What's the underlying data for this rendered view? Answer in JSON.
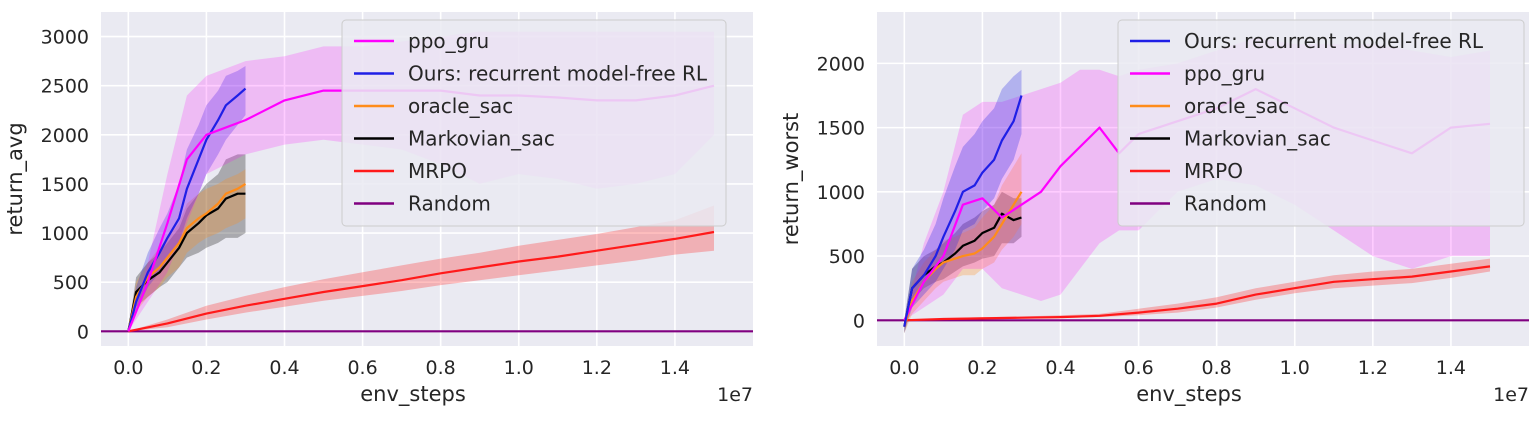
{
  "chart_data": [
    {
      "type": "line",
      "xlabel": "env_steps",
      "ylabel": "return_avg",
      "x_offset_label": "1e7",
      "xlim": [
        -0.07,
        1.6
      ],
      "ylim": [
        -150,
        3250
      ],
      "xticks": [
        0.0,
        0.2,
        0.4,
        0.6,
        0.8,
        1.0,
        1.2,
        1.4
      ],
      "xtick_labels": [
        "0.0",
        "0.2",
        "0.4",
        "0.6",
        "0.8",
        "1.0",
        "1.2",
        "1.4"
      ],
      "yticks": [
        0,
        500,
        1000,
        1500,
        2000,
        2500,
        3000
      ],
      "ytick_labels": [
        "0",
        "500",
        "1000",
        "1500",
        "2000",
        "2500",
        "3000"
      ],
      "grid": true,
      "legend_position": "top-right",
      "series": [
        {
          "name": "ppo_gru",
          "color": "#ff00ff",
          "x": [
            0.0,
            0.05,
            0.1,
            0.15,
            0.2,
            0.3,
            0.4,
            0.5,
            0.6,
            0.7,
            0.8,
            0.9,
            1.0,
            1.1,
            1.2,
            1.3,
            1.4,
            1.5
          ],
          "y": [
            0,
            500,
            1100,
            1750,
            2000,
            2150,
            2350,
            2450,
            2450,
            2450,
            2450,
            2400,
            2400,
            2380,
            2350,
            2350,
            2400,
            2500
          ],
          "lower": [
            0,
            300,
            600,
            1100,
            1600,
            1800,
            1900,
            1950,
            1900,
            1850,
            1700,
            1500,
            1600,
            1550,
            1450,
            1500,
            1600,
            2000
          ],
          "upper": [
            0,
            700,
            1600,
            2400,
            2600,
            2750,
            2800,
            2900,
            2900,
            2950,
            3000,
            3050,
            3050,
            3050,
            3050,
            3050,
            3050,
            3050
          ]
        },
        {
          "name": "Ours: recurrent model-free RL",
          "color": "#1f1fe6",
          "x": [
            0.0,
            0.02,
            0.05,
            0.08,
            0.1,
            0.13,
            0.15,
            0.18,
            0.2,
            0.23,
            0.25,
            0.28,
            0.3
          ],
          "y": [
            0,
            300,
            600,
            800,
            950,
            1150,
            1450,
            1750,
            1950,
            2150,
            2300,
            2400,
            2470
          ],
          "lower": [
            0,
            200,
            450,
            600,
            750,
            900,
            1150,
            1400,
            1600,
            1800,
            1950,
            2100,
            2200
          ],
          "upper": [
            0,
            450,
            800,
            1050,
            1200,
            1500,
            1850,
            2100,
            2300,
            2450,
            2600,
            2650,
            2700
          ]
        },
        {
          "name": "oracle_sac",
          "color": "#ff8c1a",
          "x": [
            0.0,
            0.02,
            0.05,
            0.08,
            0.1,
            0.13,
            0.15,
            0.18,
            0.2,
            0.23,
            0.25,
            0.28,
            0.3
          ],
          "y": [
            0,
            350,
            550,
            650,
            750,
            900,
            1050,
            1150,
            1200,
            1300,
            1400,
            1450,
            1500
          ],
          "lower": [
            0,
            200,
            350,
            450,
            550,
            650,
            800,
            900,
            950,
            1000,
            1050,
            1100,
            1150
          ],
          "upper": [
            0,
            500,
            700,
            850,
            950,
            1100,
            1300,
            1400,
            1450,
            1500,
            1550,
            1600,
            1650
          ]
        },
        {
          "name": "Markovian_sac",
          "color": "#000000",
          "x": [
            0.0,
            0.02,
            0.05,
            0.08,
            0.1,
            0.13,
            0.15,
            0.18,
            0.2,
            0.23,
            0.25,
            0.28,
            0.3
          ],
          "y": [
            0,
            400,
            520,
            600,
            700,
            850,
            1000,
            1100,
            1180,
            1250,
            1350,
            1400,
            1400
          ],
          "lower": [
            0,
            250,
            350,
            450,
            500,
            650,
            750,
            800,
            850,
            900,
            950,
            950,
            1000
          ],
          "upper": [
            0,
            550,
            700,
            800,
            900,
            1050,
            1250,
            1400,
            1500,
            1600,
            1750,
            1800,
            1800
          ]
        },
        {
          "name": "MRPO",
          "color": "#ff1a1a",
          "x": [
            0.0,
            0.1,
            0.2,
            0.3,
            0.4,
            0.5,
            0.6,
            0.7,
            0.8,
            0.9,
            1.0,
            1.1,
            1.2,
            1.3,
            1.4,
            1.5
          ],
          "y": [
            0,
            80,
            180,
            260,
            330,
            400,
            460,
            520,
            590,
            650,
            710,
            760,
            820,
            880,
            940,
            1010
          ],
          "lower": [
            0,
            40,
            120,
            190,
            250,
            310,
            360,
            410,
            470,
            520,
            570,
            620,
            670,
            720,
            780,
            820
          ],
          "upper": [
            0,
            120,
            260,
            360,
            450,
            530,
            600,
            670,
            740,
            800,
            870,
            930,
            990,
            1060,
            1130,
            1280
          ]
        },
        {
          "name": "Random",
          "color": "#800080",
          "x": [
            -0.07,
            1.6
          ],
          "y": [
            0,
            0
          ]
        }
      ]
    },
    {
      "type": "line",
      "xlabel": "env_steps",
      "ylabel": "return_worst",
      "x_offset_label": "1e7",
      "xlim": [
        -0.07,
        1.6
      ],
      "ylim": [
        -200,
        2400
      ],
      "xticks": [
        0.0,
        0.2,
        0.4,
        0.6,
        0.8,
        1.0,
        1.2,
        1.4
      ],
      "xtick_labels": [
        "0.0",
        "0.2",
        "0.4",
        "0.6",
        "0.8",
        "1.0",
        "1.2",
        "1.4"
      ],
      "yticks": [
        0,
        500,
        1000,
        1500,
        2000
      ],
      "ytick_labels": [
        "0",
        "500",
        "1000",
        "1500",
        "2000"
      ],
      "grid": true,
      "legend_position": "top-right",
      "series": [
        {
          "name": "Ours: recurrent model-free RL",
          "color": "#1f1fe6",
          "x": [
            0.0,
            0.02,
            0.05,
            0.08,
            0.1,
            0.13,
            0.15,
            0.18,
            0.2,
            0.23,
            0.25,
            0.28,
            0.3
          ],
          "y": [
            -50,
            250,
            350,
            500,
            650,
            850,
            1000,
            1050,
            1150,
            1250,
            1400,
            1550,
            1750
          ],
          "lower": [
            -100,
            100,
            200,
            300,
            400,
            550,
            700,
            750,
            850,
            950,
            1100,
            1250,
            1450
          ],
          "upper": [
            0,
            400,
            550,
            750,
            950,
            1200,
            1350,
            1450,
            1550,
            1650,
            1800,
            1900,
            1950
          ]
        },
        {
          "name": "ppo_gru",
          "color": "#ff00ff",
          "x": [
            0.0,
            0.05,
            0.1,
            0.15,
            0.2,
            0.25,
            0.3,
            0.35,
            0.4,
            0.45,
            0.5,
            0.55,
            0.6,
            0.7,
            0.8,
            0.9,
            1.0,
            1.1,
            1.2,
            1.3,
            1.4,
            1.5
          ],
          "y": [
            0,
            300,
            500,
            900,
            950,
            800,
            900,
            1000,
            1200,
            1350,
            1500,
            1300,
            1450,
            1550,
            1650,
            1800,
            1650,
            1500,
            1400,
            1300,
            1500,
            1530
          ],
          "lower": [
            0,
            100,
            200,
            400,
            400,
            250,
            200,
            150,
            200,
            400,
            600,
            700,
            700,
            1000,
            1100,
            1050,
            900,
            700,
            500,
            400,
            500,
            500
          ],
          "upper": [
            0,
            600,
            1000,
            1600,
            1700,
            1700,
            1750,
            1800,
            1850,
            1950,
            1950,
            1900,
            1950,
            2000,
            2100,
            2200,
            2150,
            2150,
            2150,
            2100,
            2050,
            2100
          ]
        },
        {
          "name": "oracle_sac",
          "color": "#ff8c1a",
          "x": [
            0.0,
            0.02,
            0.05,
            0.08,
            0.1,
            0.13,
            0.15,
            0.18,
            0.2,
            0.23,
            0.25,
            0.28,
            0.3
          ],
          "y": [
            -50,
            150,
            300,
            400,
            450,
            480,
            500,
            520,
            560,
            650,
            750,
            900,
            1000
          ],
          "lower": [
            -100,
            50,
            150,
            250,
            300,
            330,
            350,
            350,
            400,
            450,
            550,
            650,
            750
          ],
          "upper": [
            0,
            300,
            450,
            550,
            620,
            650,
            680,
            720,
            800,
            900,
            1050,
            1200,
            1300
          ]
        },
        {
          "name": "Markovian_sac",
          "color": "#000000",
          "x": [
            0.0,
            0.02,
            0.05,
            0.08,
            0.1,
            0.13,
            0.15,
            0.18,
            0.2,
            0.23,
            0.25,
            0.28,
            0.3
          ],
          "y": [
            -50,
            250,
            350,
            420,
            450,
            520,
            580,
            620,
            680,
            720,
            830,
            780,
            800
          ],
          "lower": [
            -100,
            150,
            250,
            300,
            320,
            380,
            420,
            450,
            480,
            500,
            600,
            600,
            650
          ],
          "upper": [
            0,
            400,
            500,
            550,
            600,
            680,
            750,
            800,
            850,
            900,
            1000,
            950,
            950
          ]
        },
        {
          "name": "MRPO",
          "color": "#ff1a1a",
          "x": [
            0.0,
            0.1,
            0.2,
            0.3,
            0.4,
            0.5,
            0.6,
            0.7,
            0.8,
            0.9,
            1.0,
            1.1,
            1.2,
            1.3,
            1.4,
            1.5
          ],
          "y": [
            0,
            10,
            15,
            20,
            25,
            35,
            60,
            90,
            130,
            200,
            250,
            300,
            320,
            340,
            380,
            420
          ],
          "lower": [
            0,
            5,
            8,
            12,
            18,
            25,
            40,
            60,
            100,
            160,
            210,
            250,
            270,
            290,
            330,
            380
          ],
          "upper": [
            0,
            15,
            25,
            30,
            40,
            50,
            90,
            130,
            180,
            250,
            300,
            350,
            380,
            400,
            440,
            480
          ]
        },
        {
          "name": "Random",
          "color": "#800080",
          "x": [
            -0.07,
            1.6
          ],
          "y": [
            0,
            0
          ]
        }
      ]
    }
  ]
}
